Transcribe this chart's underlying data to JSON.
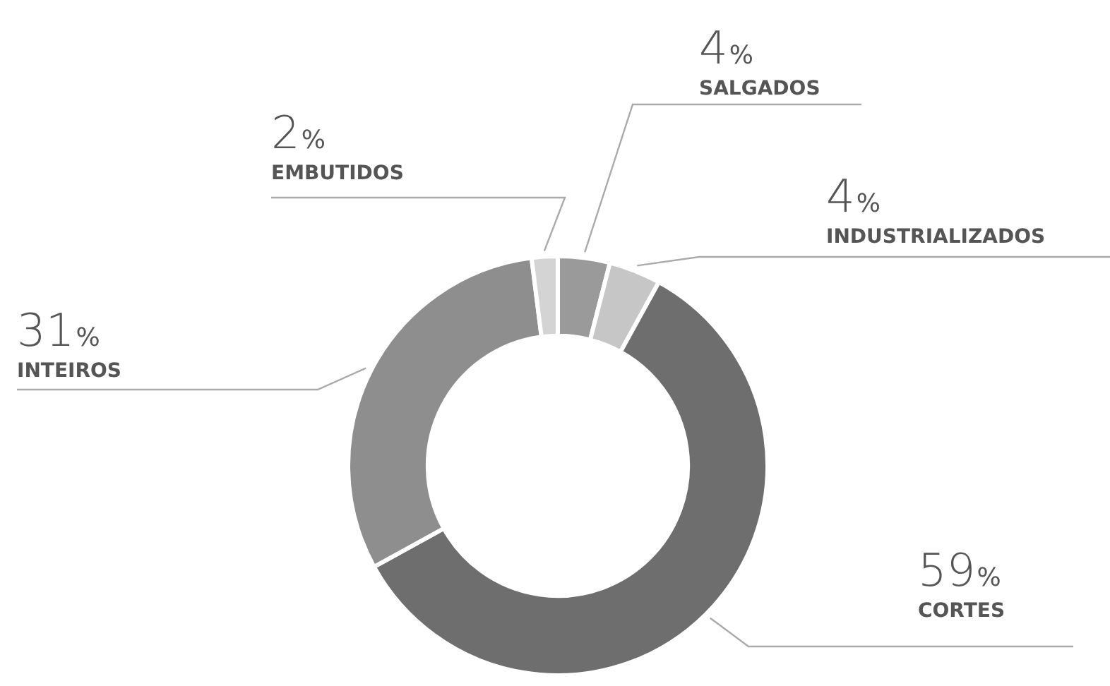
{
  "chart_data": {
    "type": "donut",
    "categories": [
      "SALGADOS",
      "INDUSTRIALIZADOS",
      "CORTES",
      "INTEIROS",
      "EMBUTIDOS"
    ],
    "values": [
      4,
      4,
      59,
      31,
      2
    ],
    "value_labels": [
      "4%",
      "4%",
      "59%",
      "31%",
      "2%"
    ],
    "colors": [
      "#9a9a9a",
      "#c6c6c6",
      "#6e6e6e",
      "#8e8e8e",
      "#d4d4d4"
    ],
    "legend": false
  }
}
